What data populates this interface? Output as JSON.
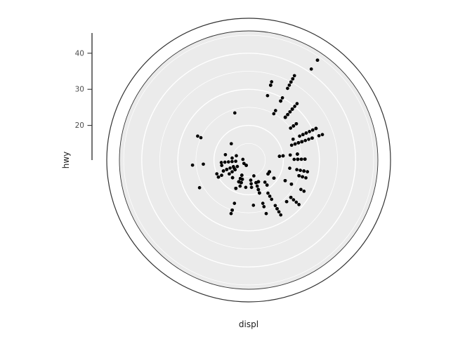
{
  "chart_data": {
    "type": "scatter",
    "coord": "polar",
    "title": "",
    "xlabel": "displ",
    "ylabel": "hwy",
    "theta_var": "displ",
    "r_var": "hwy",
    "theta_domain": [
      1.33,
      7.27
    ],
    "r_domain": [
      10.4,
      45.6
    ],
    "r_ticks": [
      20,
      30,
      40
    ],
    "r_tick_labels": [
      "20",
      "30",
      "40"
    ],
    "r_grid_major": [
      20,
      30,
      40
    ],
    "r_grid_minor": [
      15,
      25,
      35,
      45
    ],
    "grid": true,
    "legend": "none",
    "colors": {
      "panel_bg": "#ebebeb",
      "grid": "#ffffff",
      "point": "#000000",
      "ring": "#333333",
      "axis_line": "#000000",
      "tick_text": "#4d4d4d",
      "title_text": "#1a1a1a",
      "background": "#ffffff"
    },
    "points": [
      [
        1.8,
        29
      ],
      [
        1.8,
        29
      ],
      [
        2,
        31
      ],
      [
        2,
        30
      ],
      [
        2.8,
        26
      ],
      [
        2.8,
        26
      ],
      [
        3.1,
        27
      ],
      [
        1.8,
        26
      ],
      [
        1.8,
        25
      ],
      [
        2,
        28
      ],
      [
        2,
        27
      ],
      [
        2.8,
        25
      ],
      [
        2.8,
        25
      ],
      [
        3.1,
        25
      ],
      [
        3.1,
        25
      ],
      [
        2.8,
        24
      ],
      [
        3.1,
        25
      ],
      [
        4.2,
        23
      ],
      [
        5.3,
        20
      ],
      [
        5.3,
        15
      ],
      [
        5.3,
        20
      ],
      [
        5.7,
        17
      ],
      [
        6,
        17
      ],
      [
        5.7,
        26
      ],
      [
        5.7,
        23
      ],
      [
        6.2,
        26
      ],
      [
        6.2,
        25
      ],
      [
        7,
        24
      ],
      [
        5.3,
        19
      ],
      [
        5.3,
        14
      ],
      [
        5.7,
        15
      ],
      [
        6.5,
        17
      ],
      [
        2.4,
        27
      ],
      [
        2.4,
        30
      ],
      [
        3.1,
        26
      ],
      [
        3.5,
        29
      ],
      [
        3.6,
        26
      ],
      [
        2.4,
        24
      ],
      [
        3,
        24
      ],
      [
        3.3,
        22
      ],
      [
        3.3,
        22
      ],
      [
        3.3,
        24
      ],
      [
        3.3,
        24
      ],
      [
        3.3,
        17
      ],
      [
        3.8,
        22
      ],
      [
        3.8,
        21
      ],
      [
        3.8,
        23
      ],
      [
        4,
        23
      ],
      [
        3.7,
        19
      ],
      [
        3.7,
        18
      ],
      [
        3.9,
        17
      ],
      [
        3.9,
        17
      ],
      [
        4.7,
        19
      ],
      [
        4.7,
        19
      ],
      [
        4.7,
        12
      ],
      [
        5.2,
        17
      ],
      [
        5.2,
        15
      ],
      [
        3.9,
        17
      ],
      [
        4.7,
        17
      ],
      [
        4.7,
        12
      ],
      [
        4.7,
        17
      ],
      [
        4.7,
        16
      ],
      [
        5.2,
        15
      ],
      [
        5.9,
        15
      ],
      [
        4.7,
        17
      ],
      [
        4.7,
        15
      ],
      [
        4.7,
        17
      ],
      [
        4.7,
        17
      ],
      [
        4.7,
        16
      ],
      [
        4.7,
        12
      ],
      [
        5.2,
        16
      ],
      [
        5.2,
        12
      ],
      [
        5.7,
        16
      ],
      [
        5.9,
        12
      ],
      [
        4.6,
        17
      ],
      [
        5.4,
        17
      ],
      [
        5.4,
        18
      ],
      [
        4,
        17
      ],
      [
        4,
        17
      ],
      [
        4,
        19
      ],
      [
        4,
        19
      ],
      [
        4.6,
        17
      ],
      [
        5,
        17
      ],
      [
        4.2,
        17
      ],
      [
        4.2,
        16
      ],
      [
        4.6,
        18
      ],
      [
        4.6,
        17
      ],
      [
        4.6,
        16
      ],
      [
        5.4,
        17
      ],
      [
        5.4,
        15
      ],
      [
        3.8,
        26
      ],
      [
        3.8,
        25
      ],
      [
        4,
        26
      ],
      [
        4,
        24
      ],
      [
        4.6,
        25
      ],
      [
        4.6,
        25
      ],
      [
        4.6,
        26
      ],
      [
        4.6,
        23
      ],
      [
        5.4,
        20
      ],
      [
        1.6,
        33
      ],
      [
        1.6,
        32
      ],
      [
        1.6,
        32
      ],
      [
        1.6,
        29
      ],
      [
        1.6,
        32
      ],
      [
        1.8,
        34
      ],
      [
        1.8,
        36
      ],
      [
        1.8,
        36
      ],
      [
        2,
        29
      ],
      [
        2.4,
        26
      ],
      [
        2.4,
        27
      ],
      [
        2.4,
        30
      ],
      [
        2.4,
        31
      ],
      [
        2.5,
        26
      ],
      [
        2.5,
        26
      ],
      [
        3.3,
        28
      ],
      [
        2,
        26
      ],
      [
        2,
        27
      ],
      [
        2,
        26
      ],
      [
        2,
        26
      ],
      [
        2.7,
        24
      ],
      [
        2.7,
        24
      ],
      [
        2.7,
        24
      ],
      [
        3,
        22
      ],
      [
        3.7,
        19
      ],
      [
        4,
        20
      ],
      [
        4.7,
        17
      ],
      [
        4.7,
        19
      ],
      [
        4.7,
        15
      ],
      [
        5.7,
        14
      ],
      [
        6.1,
        14
      ],
      [
        4,
        15
      ],
      [
        4.2,
        18
      ],
      [
        4.4,
        18
      ],
      [
        4.6,
        16
      ],
      [
        5.4,
        17
      ],
      [
        5.4,
        16
      ],
      [
        5.4,
        18
      ],
      [
        4,
        17
      ],
      [
        4,
        19
      ],
      [
        4.6,
        17
      ],
      [
        5,
        17
      ],
      [
        2.4,
        29
      ],
      [
        2.4,
        27
      ],
      [
        2.5,
        31
      ],
      [
        2.5,
        32
      ],
      [
        3.5,
        27
      ],
      [
        3.5,
        26
      ],
      [
        3,
        26
      ],
      [
        3,
        25
      ],
      [
        3.5,
        26
      ],
      [
        3.3,
        17
      ],
      [
        3.3,
        17
      ],
      [
        4,
        20
      ],
      [
        5.6,
        18
      ],
      [
        3.1,
        26
      ],
      [
        3.8,
        26
      ],
      [
        3.8,
        27
      ],
      [
        3.8,
        28
      ],
      [
        5.3,
        26
      ],
      [
        2.5,
        26
      ],
      [
        2.5,
        24
      ],
      [
        2.5,
        26
      ],
      [
        2.5,
        25
      ],
      [
        2.5,
        23
      ],
      [
        2.5,
        24
      ],
      [
        2.2,
        26
      ],
      [
        2.2,
        25
      ],
      [
        2.5,
        26
      ],
      [
        2.5,
        25
      ],
      [
        2.5,
        26
      ],
      [
        2.5,
        25
      ],
      [
        2.5,
        27
      ],
      [
        2.5,
        25
      ],
      [
        2.7,
        20
      ],
      [
        2.7,
        19
      ],
      [
        3.4,
        19
      ],
      [
        3.4,
        17
      ],
      [
        4,
        20
      ],
      [
        4.7,
        17
      ],
      [
        2.2,
        26
      ],
      [
        2.2,
        27
      ],
      [
        2.4,
        28
      ],
      [
        2.4,
        31
      ],
      [
        3,
        26
      ],
      [
        3,
        26
      ],
      [
        3.5,
        28
      ],
      [
        2.2,
        26
      ],
      [
        2.2,
        27
      ],
      [
        2.4,
        28
      ],
      [
        2.4,
        31
      ],
      [
        3,
        26
      ],
      [
        3,
        27
      ],
      [
        3.3,
        27
      ],
      [
        1.8,
        30
      ],
      [
        1.8,
        33
      ],
      [
        1.8,
        35
      ],
      [
        1.8,
        35
      ],
      [
        1.8,
        37
      ],
      [
        4.7,
        15
      ],
      [
        5.7,
        18
      ],
      [
        2.7,
        20
      ],
      [
        2.7,
        22
      ],
      [
        2.7,
        19
      ],
      [
        3.4,
        19
      ],
      [
        3.4,
        17
      ],
      [
        4,
        17
      ],
      [
        4,
        18
      ],
      [
        2,
        29
      ],
      [
        2,
        26
      ],
      [
        2,
        29
      ],
      [
        2,
        29
      ],
      [
        2.8,
        24
      ],
      [
        1.9,
        44
      ],
      [
        2,
        29
      ],
      [
        2,
        26
      ],
      [
        2,
        29
      ],
      [
        2,
        29
      ],
      [
        2.5,
        29
      ],
      [
        2.5,
        29
      ],
      [
        2.8,
        24
      ],
      [
        2.8,
        23
      ],
      [
        1.9,
        44
      ],
      [
        1.9,
        41
      ],
      [
        2,
        29
      ],
      [
        2,
        26
      ],
      [
        2.5,
        28
      ],
      [
        2.5,
        29
      ],
      [
        1.8,
        29
      ],
      [
        1.8,
        29
      ],
      [
        2,
        28
      ],
      [
        2,
        29
      ],
      [
        2.8,
        26
      ],
      [
        2.8,
        26
      ],
      [
        3.6,
        26
      ]
    ]
  }
}
